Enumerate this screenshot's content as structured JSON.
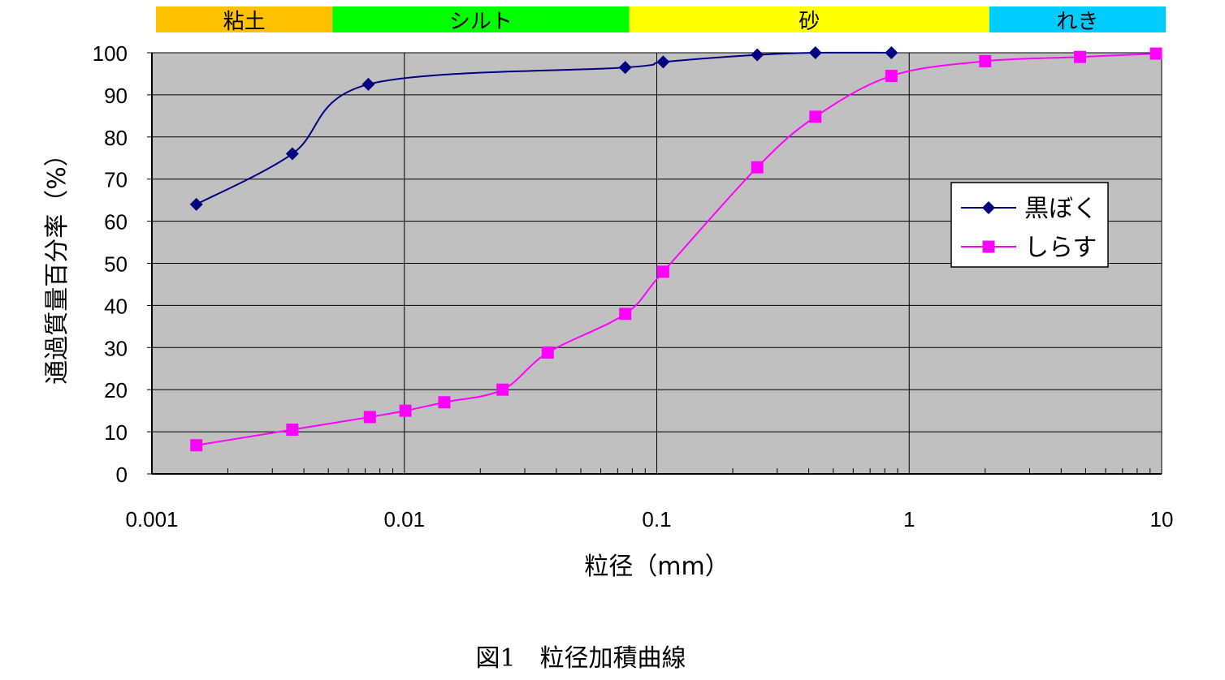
{
  "caption": "図1　粒径加積曲線",
  "chart_data": {
    "type": "line",
    "xscale": "log",
    "xlim": [
      0.001,
      10
    ],
    "ylim": [
      0,
      100
    ],
    "xticks": [
      "0.001",
      "0.01",
      "0.1",
      "1",
      "10"
    ],
    "yticks": [
      "0",
      "10",
      "20",
      "30",
      "40",
      "50",
      "60",
      "70",
      "80",
      "90",
      "100"
    ],
    "xlabel": "粒径（mm）",
    "ylabel": "通過質量百分率（%）",
    "grid": true,
    "legend_position": "right",
    "plot_background": "#c0c0c0",
    "soil_bands": [
      {
        "label": "粘土",
        "from": 0.001,
        "to": 0.005,
        "color": "#ffc000"
      },
      {
        "label": "シルト",
        "from": 0.005,
        "to": 0.075,
        "color": "#00ff00"
      },
      {
        "label": "砂",
        "from": 0.075,
        "to": 2,
        "color": "#ffff00"
      },
      {
        "label": "れき",
        "from": 2,
        "to": 10,
        "color": "#00ccff"
      }
    ],
    "series": [
      {
        "name": "黒ぼく",
        "color": "#000080",
        "marker": "diamond",
        "x": [
          0.0015,
          0.0036,
          0.0072,
          0.075,
          0.106,
          0.25,
          0.425,
          0.85
        ],
        "y": [
          64,
          76,
          92.5,
          96.5,
          97.8,
          99.5,
          100,
          100
        ]
      },
      {
        "name": "しらす",
        "color": "#ff00ff",
        "marker": "square",
        "x": [
          0.0015,
          0.0036,
          0.0073,
          0.0101,
          0.0144,
          0.0245,
          0.037,
          0.075,
          0.106,
          0.25,
          0.425,
          0.85,
          2,
          4.75,
          9.5
        ],
        "y": [
          6.8,
          10.5,
          13.5,
          15,
          17,
          20,
          28.8,
          38,
          48,
          72.8,
          84.8,
          94.5,
          98,
          99,
          99.8
        ]
      }
    ]
  }
}
